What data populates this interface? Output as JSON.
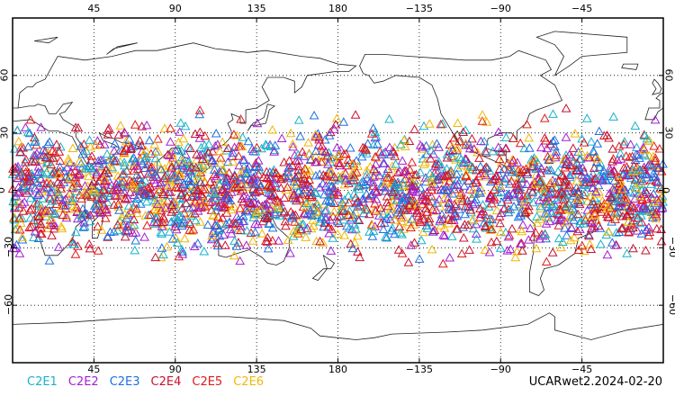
{
  "map": {
    "projection": "cylindrical equidistant",
    "center_longitude": 180,
    "lon_range": [
      0,
      360
    ],
    "lat_range": [
      -90,
      90
    ],
    "lon_ticks": [
      {
        "lon": 45,
        "label": "45"
      },
      {
        "lon": 90,
        "label": "90"
      },
      {
        "lon": 135,
        "label": "135"
      },
      {
        "lon": 180,
        "label": "180"
      },
      {
        "lon": 225,
        "label": "−135"
      },
      {
        "lon": 270,
        "label": "−90"
      },
      {
        "lon": 315,
        "label": "−45"
      }
    ],
    "lat_ticks": [
      {
        "lat": 60,
        "label": "60"
      },
      {
        "lat": 30,
        "label": "30"
      },
      {
        "lat": 0,
        "label": "0"
      },
      {
        "lat": -30,
        "label": "−30"
      },
      {
        "lat": -60,
        "label": "−60"
      }
    ],
    "grid": "dotted",
    "marker": "open-triangle",
    "observations_lat_band": [
      -45,
      45
    ]
  },
  "legend": [
    {
      "name": "C2E1",
      "color": "#17b3c9"
    },
    {
      "name": "C2E2",
      "color": "#a21fd0"
    },
    {
      "name": "C2E3",
      "color": "#1e6fe0"
    },
    {
      "name": "C2E4",
      "color": "#c8102e"
    },
    {
      "name": "C2E5",
      "color": "#e01a1a"
    },
    {
      "name": "C2E6",
      "color": "#f2b705"
    }
  ],
  "stamp": "UCARwet2.2024-02-20",
  "icons": {
    "map-background": "world-coastline-icon"
  }
}
